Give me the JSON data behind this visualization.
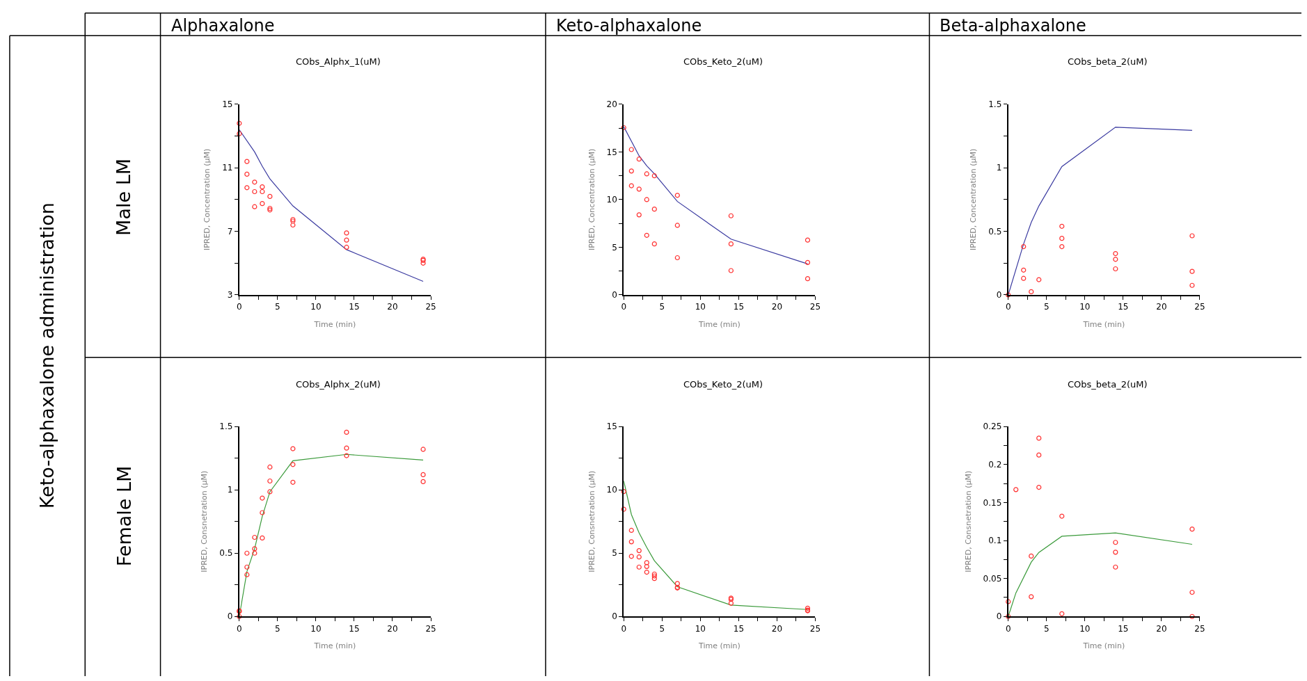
{
  "chart_data": [
    {
      "type": "other",
      "annotations": [
        "Alphaxalone",
        "Keto-alphaxalone",
        "Beta-alphaxalone",
        "Keto-alphaxalone administration",
        "Male LM",
        "Female LM"
      ]
    },
    {
      "type": "scatter",
      "title": "CObs_Alphx_1(uM)",
      "xlabel": "Time (min)",
      "ylabel": "IPRED, Concentration (μM)",
      "xlim": [
        0,
        25
      ],
      "ylim": [
        3,
        15
      ],
      "xticks": [
        0,
        {
          "value": 2.5,
          "label": null
        },
        5,
        {
          "value": 7.5,
          "label": null
        },
        10,
        {
          "value": 12.5,
          "label": null
        },
        15,
        {
          "value": 17.5,
          "label": null
        },
        20,
        {
          "value": 22.5,
          "label": null
        },
        25
      ],
      "yticks": [
        3,
        {
          "value": 5,
          "label": null
        },
        7,
        {
          "value": 9,
          "label": null
        },
        11,
        {
          "value": 13,
          "label": null
        },
        15
      ],
      "series": [
        {
          "type": "line",
          "color": "#3a3aa0",
          "marker": "none",
          "x": [
            0,
            2,
            3,
            4,
            7,
            14,
            24
          ],
          "values": [
            13.4,
            12.0,
            11.1,
            10.3,
            8.6,
            5.85,
            3.85
          ]
        },
        {
          "type": "scatter",
          "color": "#ff3030",
          "marker": "circle",
          "x": [
            0,
            0,
            1,
            1,
            1,
            2,
            2,
            2,
            3,
            3,
            3,
            4,
            4,
            4,
            7,
            7,
            7,
            14,
            14,
            14,
            24,
            24,
            24
          ],
          "values": [
            13.8,
            13.15,
            11.4,
            10.6,
            9.75,
            10.1,
            9.5,
            8.55,
            9.8,
            9.5,
            8.75,
            9.2,
            8.45,
            8.35,
            7.75,
            7.65,
            7.4,
            6.9,
            6.45,
            6.0,
            5.25,
            5.17,
            5.0
          ]
        }
      ]
    },
    {
      "type": "scatter",
      "title": "CObs_Keto_2(uM)",
      "xlabel": "Time (min)",
      "ylabel": "IPRED, Concentration (μM)",
      "xlim": [
        0,
        25
      ],
      "ylim": [
        0,
        20
      ],
      "xticks": [
        0,
        {
          "value": 2.5,
          "label": null
        },
        5,
        {
          "value": 7.5,
          "label": null
        },
        10,
        {
          "value": 12.5,
          "label": null
        },
        15,
        {
          "value": 17.5,
          "label": null
        },
        20,
        {
          "value": 22.5,
          "label": null
        },
        25
      ],
      "yticks": [
        0,
        {
          "value": 2.5,
          "label": null
        },
        5,
        {
          "value": 7.5,
          "label": null
        },
        10,
        {
          "value": 12.5,
          "label": null
        },
        15,
        {
          "value": 17.5,
          "label": null
        },
        20
      ],
      "series": [
        {
          "type": "line",
          "color": "#3a3aa0",
          "marker": "none",
          "x": [
            0,
            2,
            3,
            4,
            7,
            14,
            24
          ],
          "values": [
            17.65,
            14.6,
            13.55,
            12.7,
            9.8,
            5.85,
            3.25
          ]
        },
        {
          "type": "scatter",
          "color": "#ff3030",
          "marker": "circle",
          "x": [
            0,
            1,
            1,
            1,
            2,
            2,
            2,
            3,
            3,
            3,
            4,
            4,
            4,
            7,
            7,
            7,
            14,
            14,
            14,
            24,
            24,
            24
          ],
          "values": [
            17.55,
            15.25,
            13.0,
            11.45,
            14.25,
            11.1,
            8.4,
            12.7,
            10.0,
            6.25,
            12.5,
            9.0,
            5.35,
            10.45,
            7.3,
            3.9,
            8.3,
            5.35,
            2.55,
            5.75,
            3.4,
            1.7
          ]
        }
      ]
    },
    {
      "type": "scatter",
      "title": "CObs_beta_2(uM)",
      "xlabel": "Time (min)",
      "ylabel": "IPRED, Concentration (μM)",
      "xlim": [
        0,
        25
      ],
      "ylim": [
        0,
        1.5
      ],
      "xticks": [
        0,
        {
          "value": 2.5,
          "label": null
        },
        5,
        {
          "value": 7.5,
          "label": null
        },
        10,
        {
          "value": 12.5,
          "label": null
        },
        15,
        {
          "value": 17.5,
          "label": null
        },
        20,
        {
          "value": 22.5,
          "label": null
        },
        25
      ],
      "yticks": [
        0,
        {
          "value": 0.25,
          "label": null
        },
        0.5,
        {
          "value": 0.75,
          "label": null
        },
        1,
        {
          "value": 1.25,
          "label": null
        },
        1.5
      ],
      "series": [
        {
          "type": "line",
          "color": "#3a3aa0",
          "marker": "none",
          "x": [
            0,
            2,
            3,
            4,
            7,
            14,
            24
          ],
          "values": [
            0,
            0.4,
            0.57,
            0.7,
            1.01,
            1.32,
            1.295
          ]
        },
        {
          "type": "scatter",
          "color": "#ff3030",
          "marker": "circle",
          "x": [
            0,
            2,
            2,
            2,
            3,
            4,
            7,
            7,
            7,
            14,
            14,
            14,
            24,
            24,
            24
          ],
          "values": [
            0,
            0.38,
            0.195,
            0.13,
            0.025,
            0.12,
            0.54,
            0.445,
            0.38,
            0.325,
            0.28,
            0.205,
            0.465,
            0.185,
            0.075
          ]
        }
      ]
    },
    {
      "type": "scatter",
      "title": "CObs_Alphx_2(uM)",
      "xlabel": "Time (min)",
      "ylabel": "IPRED, Consnetration (μM)",
      "xlim": [
        0,
        25
      ],
      "ylim": [
        0,
        1.5
      ],
      "xticks": [
        0,
        {
          "value": 2.5,
          "label": null
        },
        5,
        {
          "value": 7.5,
          "label": null
        },
        10,
        {
          "value": 12.5,
          "label": null
        },
        15,
        {
          "value": 17.5,
          "label": null
        },
        20,
        {
          "value": 22.5,
          "label": null
        },
        25
      ],
      "yticks": [
        0,
        {
          "value": 0.25,
          "label": null
        },
        0.5,
        {
          "value": 0.75,
          "label": null
        },
        1,
        {
          "value": 1.25,
          "label": null
        },
        1.5
      ],
      "series": [
        {
          "type": "line",
          "color": "#3a9a3a",
          "marker": "none",
          "x": [
            0,
            1,
            2,
            3,
            4,
            7,
            14,
            24
          ],
          "values": [
            0,
            0.355,
            0.535,
            0.79,
            0.985,
            1.23,
            1.28,
            1.235
          ]
        },
        {
          "type": "scatter",
          "color": "#ff3030",
          "marker": "circle",
          "x": [
            0,
            0,
            0,
            1,
            1,
            1,
            2,
            2,
            2,
            3,
            3,
            3,
            4,
            4,
            4,
            7,
            7,
            7,
            14,
            14,
            14,
            24,
            24,
            24
          ],
          "values": [
            0.045,
            0.04,
            0,
            0.5,
            0.39,
            0.33,
            0.625,
            0.535,
            0.5,
            0.935,
            0.82,
            0.62,
            1.18,
            1.07,
            0.985,
            1.325,
            1.2,
            1.06,
            1.455,
            1.33,
            1.27,
            1.32,
            1.12,
            1.065
          ]
        }
      ]
    },
    {
      "type": "scatter",
      "title": "CObs_Keto_2(uM)",
      "xlabel": "Time (min)",
      "ylabel": "IPRED, Consnetration (μM)",
      "xlim": [
        0,
        25
      ],
      "ylim": [
        0,
        15
      ],
      "xticks": [
        0,
        {
          "value": 2.5,
          "label": null
        },
        5,
        {
          "value": 7.5,
          "label": null
        },
        10,
        {
          "value": 12.5,
          "label": null
        },
        15,
        {
          "value": 17.5,
          "label": null
        },
        20,
        {
          "value": 22.5,
          "label": null
        },
        25
      ],
      "yticks": [
        0,
        {
          "value": 2.5,
          "label": null
        },
        5,
        {
          "value": 7.5,
          "label": null
        },
        10,
        {
          "value": 12.5,
          "label": null
        },
        15
      ],
      "series": [
        {
          "type": "line",
          "color": "#3a9a3a",
          "marker": "none",
          "x": [
            0,
            1,
            2,
            3,
            4,
            7,
            14,
            24
          ],
          "values": [
            10.7,
            8.05,
            6.6,
            5.45,
            4.4,
            2.35,
            0.9,
            0.55
          ]
        },
        {
          "type": "scatter",
          "color": "#ff3030",
          "marker": "circle",
          "x": [
            0,
            0,
            1,
            1,
            1,
            2,
            2,
            2,
            3,
            3,
            3,
            4,
            4,
            4,
            7,
            7,
            7,
            14,
            14,
            14,
            24,
            24,
            24
          ],
          "values": [
            9.87,
            8.47,
            6.8,
            5.9,
            4.75,
            5.2,
            4.7,
            3.9,
            4.25,
            3.95,
            3.5,
            3.35,
            3.2,
            3.0,
            2.6,
            2.3,
            2.25,
            1.45,
            1.35,
            1.05,
            0.65,
            0.5,
            0.45
          ]
        }
      ]
    },
    {
      "type": "scatter",
      "title": "CObs_beta_2(uM)",
      "xlabel": "Time (min)",
      "ylabel": "IPRED, Consnetration (μM)",
      "xlim": [
        0,
        25
      ],
      "ylim": [
        0,
        0.25
      ],
      "xticks": [
        0,
        {
          "value": 2.5,
          "label": null
        },
        5,
        {
          "value": 7.5,
          "label": null
        },
        10,
        {
          "value": 12.5,
          "label": null
        },
        15,
        {
          "value": 17.5,
          "label": null
        },
        20,
        {
          "value": 22.5,
          "label": null
        },
        25
      ],
      "yticks": [
        0,
        {
          "value": 0.025,
          "label": null
        },
        0.05,
        {
          "value": 0.075,
          "label": null
        },
        0.1,
        {
          "value": 0.125,
          "label": null
        },
        0.15,
        {
          "value": 0.175,
          "label": null
        },
        0.2,
        {
          "value": 0.225,
          "label": null
        },
        0.25
      ],
      "series": [
        {
          "type": "line",
          "color": "#3a9a3a",
          "marker": "none",
          "x": [
            0,
            1,
            3,
            4,
            7,
            14,
            24
          ],
          "values": [
            0,
            0.031,
            0.0715,
            0.0843,
            0.1056,
            0.11,
            0.095
          ]
        },
        {
          "type": "scatter",
          "color": "#ff3030",
          "marker": "circle",
          "x": [
            0,
            0,
            1,
            3,
            3,
            4,
            4,
            4,
            7,
            7,
            14,
            14,
            14,
            24,
            24,
            24
          ],
          "values": [
            0.0195,
            0,
            0.167,
            0.0795,
            0.026,
            0.2347,
            0.2125,
            0.17,
            0.132,
            0.0036,
            0.0975,
            0.0846,
            0.065,
            0.115,
            0.0318,
            0
          ]
        }
      ]
    }
  ]
}
